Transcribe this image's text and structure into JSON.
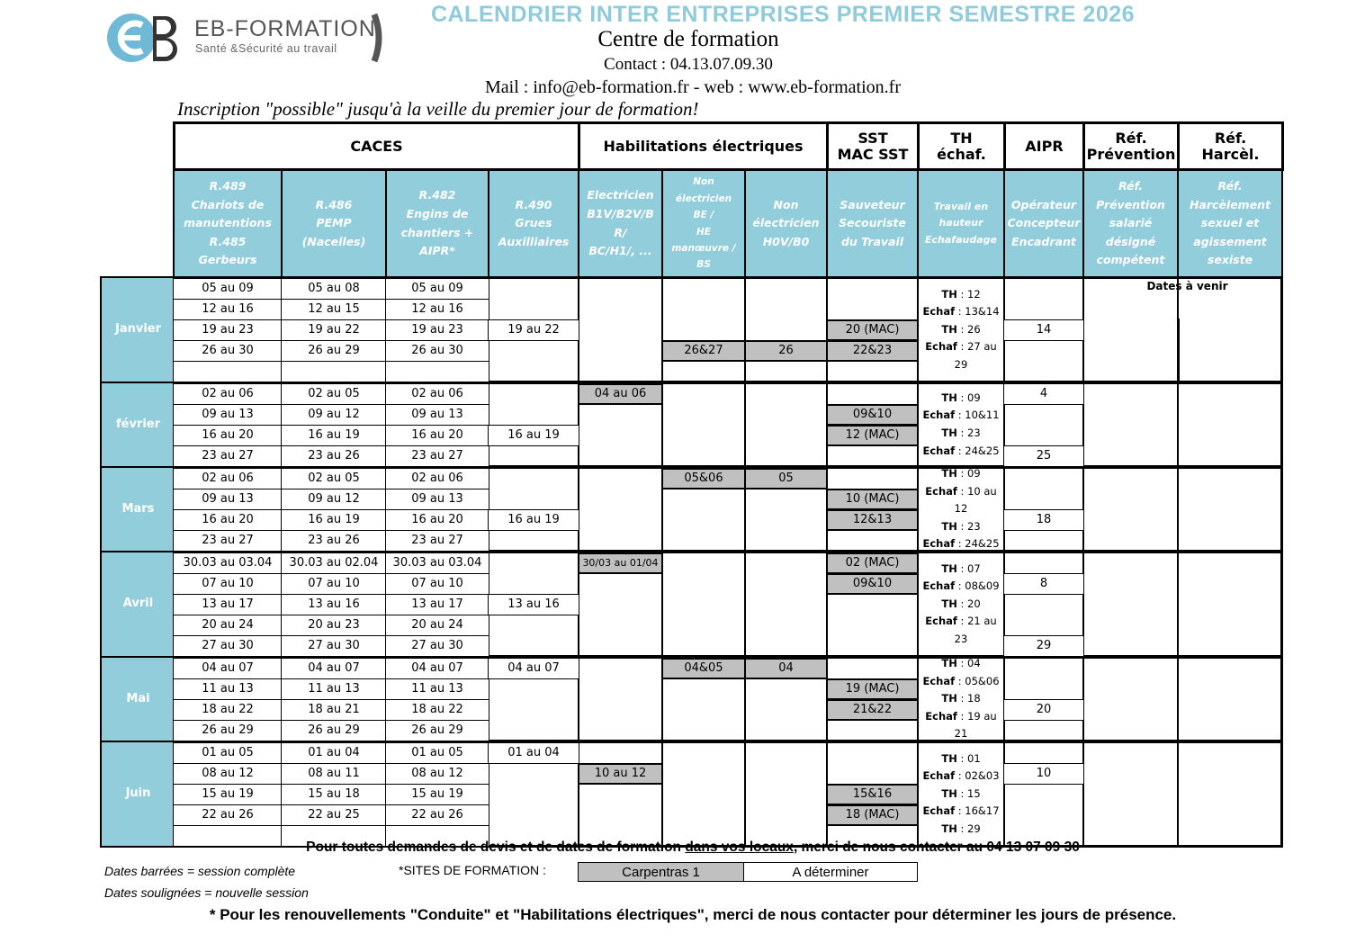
{
  "header": {
    "logo_brand": "EB-FORMATION",
    "logo_tagline": "Santé &Sécurité au travail",
    "title": "CALENDRIER INTER ENTREPRISES PREMIER SEMESTRE 2026",
    "subtitle": "Centre de formation",
    "contact": "Contact : 04.13.07.09.30",
    "mail_web": "Mail :  info@eb-formation.fr - web : www.eb-formation.fr",
    "inscription_note": "Inscription \"possible\" jusqu'à la veille du premier jour de formation!"
  },
  "colors": {
    "title": "#8ecbdb",
    "header_fill": "#92cddc",
    "carpentras_fill": "#c0c0c0"
  },
  "groups": [
    "CACES",
    "Habilitations électriques",
    "SST\nMAC SST",
    "TH\néchaf.",
    "AIPR",
    "Réf.\nPrévention",
    "Réf.\nHarcèl."
  ],
  "columns": [
    "R.489\nChariots de\nmanutentions\nR.485\nGerbeurs",
    "R.486\nPEMP\n(Nacelles)",
    "R.482\nEngins de\nchantiers +\nAIPR*",
    "R.490\nGrues\nAuxilliaires",
    "Electricien\nB1V/B2V/B\nR/\nBC/H1/, ...",
    "Non\nélectricien\nBE /\nHE\nmanœuvre /\nBS",
    "Non\nélectricien\nH0V/B0",
    "Sauveteur\nSecouriste\ndu Travail",
    "Travail en\nhauteur\nEchafaudage",
    "Opérateur\nConcepteur\nEncadrant",
    "Réf.\nPrévention\nsalarié\ndésigné\ncompétent",
    "Réf.\nHarcèlement\nsexuel et\nagissement\nsexiste"
  ],
  "ref_note": "Dates à venir",
  "months": [
    {
      "name": "Janvier",
      "caces": [
        [
          "05 au 09",
          "05 au 08",
          "05 au 09"
        ],
        [
          "12 au 16",
          "12 au 15",
          "12 au 16"
        ],
        [
          "19 au 23",
          "19 au 22",
          "19 au 23"
        ],
        [
          "26 au 30",
          "26 au 29",
          "26 au 30"
        ],
        [
          "",
          "",
          ""
        ]
      ],
      "r490": [
        "",
        "",
        "19 au 22",
        "",
        ""
      ],
      "hab1": [
        "",
        "",
        "",
        "",
        ""
      ],
      "hab2": [
        "",
        "",
        "",
        "26&27",
        ""
      ],
      "hab3": [
        "",
        "",
        "",
        "26",
        ""
      ],
      "sst": [
        "",
        "",
        "20 (MAC)",
        "22&23",
        ""
      ],
      "th": [
        [
          "TH",
          "12"
        ],
        [
          "Echaf",
          "13&14"
        ],
        [
          "TH",
          "26"
        ],
        [
          "Echaf",
          "27 au 29"
        ]
      ],
      "aipr": [
        "",
        "",
        "14",
        "",
        ""
      ]
    },
    {
      "name": "février",
      "caces": [
        [
          "02 au 06",
          "02 au 05",
          "02 au 06"
        ],
        [
          "09 au 13",
          "09 au 12",
          "09 au 13"
        ],
        [
          "16 au 20",
          "16 au 19",
          "16 au 20"
        ],
        [
          "23 au 27",
          "23 au 26",
          "23 au 27"
        ]
      ],
      "r490": [
        "",
        "",
        "16 au 19",
        ""
      ],
      "hab1": [
        "04 au 06",
        "",
        "",
        ""
      ],
      "hab2": [
        "",
        "",
        "",
        ""
      ],
      "hab3": [
        "",
        "",
        "",
        ""
      ],
      "sst": [
        "",
        "09&10",
        "12 (MAC)",
        ""
      ],
      "th": [
        [
          "TH",
          "09"
        ],
        [
          "Echaf",
          "10&11"
        ],
        [
          "TH",
          "23"
        ],
        [
          "Echaf",
          "24&25"
        ]
      ],
      "aipr": [
        "4",
        "",
        "",
        "25"
      ]
    },
    {
      "name": "Mars",
      "caces": [
        [
          "02 au 06",
          "02 au 05",
          "02 au 06"
        ],
        [
          "09 au 13",
          "09 au 12",
          "09 au 13"
        ],
        [
          "16 au 20",
          "16 au 19",
          "16 au 20"
        ],
        [
          "23 au 27",
          "23 au 26",
          "23 au 27"
        ]
      ],
      "r490": [
        "",
        "",
        "16 au 19",
        ""
      ],
      "hab1": [
        "",
        "",
        "",
        ""
      ],
      "hab2": [
        "05&06",
        "",
        "",
        ""
      ],
      "hab3": [
        "05",
        "",
        "",
        ""
      ],
      "sst": [
        "",
        "10 (MAC)",
        "12&13",
        ""
      ],
      "th": [
        [
          "TH",
          "09"
        ],
        [
          "Echaf",
          "10 au 12"
        ],
        [
          "TH",
          "23"
        ],
        [
          "Echaf",
          "24&25"
        ]
      ],
      "aipr": [
        "",
        "",
        "18",
        ""
      ]
    },
    {
      "name": "Avril",
      "caces": [
        [
          "30.03 au 03.04",
          "30.03 au 02.04",
          "30.03 au 03.04"
        ],
        [
          "07 au 10",
          "07 au 10",
          "07 au 10"
        ],
        [
          "13 au 17",
          "13 au 16",
          "13 au 17"
        ],
        [
          "20 au 24",
          "20 au 23",
          "20 au 24"
        ],
        [
          "27 au 30",
          "27 au 30",
          "27 au 30"
        ]
      ],
      "r490": [
        "",
        "",
        "13 au 16",
        "",
        ""
      ],
      "hab1": [
        "30/03 au 01/04",
        "",
        "",
        "",
        ""
      ],
      "hab2": [
        "",
        "",
        "",
        "",
        ""
      ],
      "hab3": [
        "",
        "",
        "",
        "",
        ""
      ],
      "sst": [
        "02 (MAC)",
        "09&10",
        "",
        "",
        ""
      ],
      "th": [
        [
          "TH",
          "07"
        ],
        [
          "Echaf",
          "08&09"
        ],
        [
          "TH",
          "20"
        ],
        [
          "Echaf",
          "21 au 23"
        ]
      ],
      "aipr": [
        "",
        "8",
        "",
        "",
        "29"
      ]
    },
    {
      "name": "Mai",
      "caces": [
        [
          "04 au 07",
          "04 au 07",
          "04 au 07"
        ],
        [
          "11 au 13",
          "11 au 13",
          "11 au 13"
        ],
        [
          "18 au 22",
          "18 au 21",
          "18 au 22"
        ],
        [
          "26 au 29",
          "26 au 29",
          "26 au 29"
        ]
      ],
      "r490": [
        "04 au 07",
        "",
        "",
        ""
      ],
      "hab1": [
        "",
        "",
        "",
        ""
      ],
      "hab2": [
        "04&05",
        "",
        "",
        ""
      ],
      "hab3": [
        "04",
        "",
        "",
        ""
      ],
      "sst": [
        "",
        "19 (MAC)",
        "21&22",
        ""
      ],
      "th": [
        [
          "TH",
          "04"
        ],
        [
          "Echaf",
          "05&06"
        ],
        [
          "TH",
          "18"
        ],
        [
          "Echaf",
          "19 au 21"
        ]
      ],
      "aipr": [
        "",
        "",
        "20",
        ""
      ]
    },
    {
      "name": "Juin",
      "caces": [
        [
          "01 au 05",
          "01 au 04",
          "01 au 05"
        ],
        [
          "08 au 12",
          "08 au 11",
          "08 au 12"
        ],
        [
          "15 au 19",
          "15 au 18",
          "15 au 19"
        ],
        [
          "22 au 26",
          "22 au 25",
          "22 au 26"
        ],
        [
          "",
          "",
          ""
        ]
      ],
      "r490": [
        "01 au 04",
        "",
        "",
        "",
        ""
      ],
      "hab1": [
        "",
        "10 au 12",
        "",
        "",
        ""
      ],
      "hab2": [
        "",
        "",
        "",
        "",
        ""
      ],
      "hab3": [
        "",
        "",
        "",
        "",
        ""
      ],
      "sst": [
        "",
        "",
        "15&16",
        "18 (MAC)",
        ""
      ],
      "th": [
        [
          "TH",
          "01"
        ],
        [
          "Echaf",
          "02&03"
        ],
        [
          "TH",
          "15"
        ],
        [
          "Echaf",
          "16&17"
        ],
        [
          "TH",
          "29"
        ]
      ],
      "aipr": [
        "",
        "10",
        "",
        "",
        ""
      ]
    }
  ],
  "footer": {
    "contact_pre": "Pour toutes demandes de devis et de dates de formation ",
    "contact_link": "dans vos locaux",
    "contact_post": ", merci de nous contacter au 04 13 07 09 30",
    "legend_barrees": "Dates barrées = session complète",
    "legend_soulignees": "Dates soulignées = nouvelle session",
    "sites_label": "*SITES DE FORMATION :",
    "site_1": "Carpentras 1",
    "site_2": "A déterminer",
    "renewal_note": "* Pour les renouvellements \"Conduite\" et \"Habilitations électriques\", merci de nous contacter pour déterminer les jours de présence."
  }
}
